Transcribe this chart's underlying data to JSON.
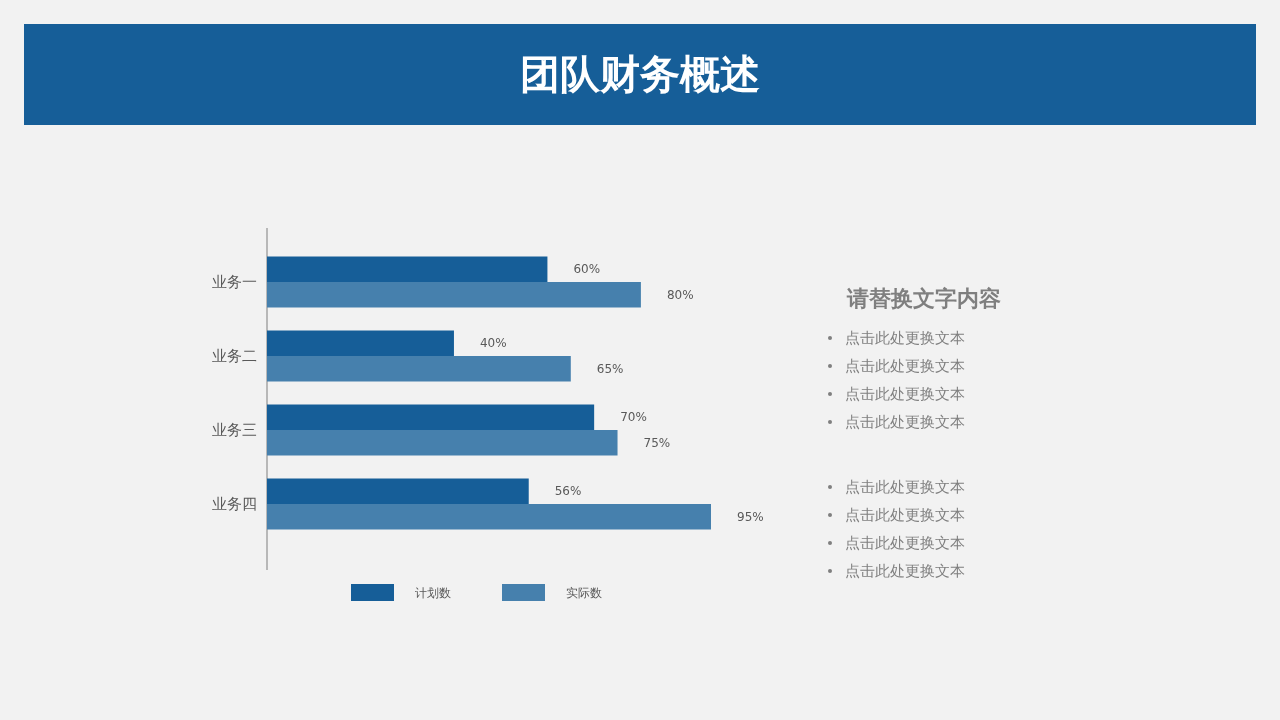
{
  "chart_data": [
    {
      "type": "bar",
      "orientation": "horizontal",
      "title": "团队财务概述",
      "categories": [
        "业务一",
        "业务二",
        "业务三",
        "业务四"
      ],
      "series": [
        {
          "name": "计划数",
          "color": "#165e98",
          "values": [
            60,
            40,
            70,
            56
          ],
          "value_labels": [
            "60%",
            "40%",
            "70%",
            "56%"
          ]
        },
        {
          "name": "实际数",
          "color": "#4680ad",
          "values": [
            80,
            65,
            75,
            95
          ],
          "value_labels": [
            "80%",
            "65%",
            "75%",
            "95%"
          ]
        }
      ],
      "legend": "bottom"
    },
    {
      "type": "other",
      "title": "请替换文字内容",
      "annotations": [
        "点击此处更换文本",
        "点击此处更换文本",
        "点击此处更换文本",
        "点击此处更换文本",
        "点击此处更换文本",
        "点击此处更换文本",
        "点击此处更换文本",
        "点击此处更换文本"
      ]
    }
  ]
}
